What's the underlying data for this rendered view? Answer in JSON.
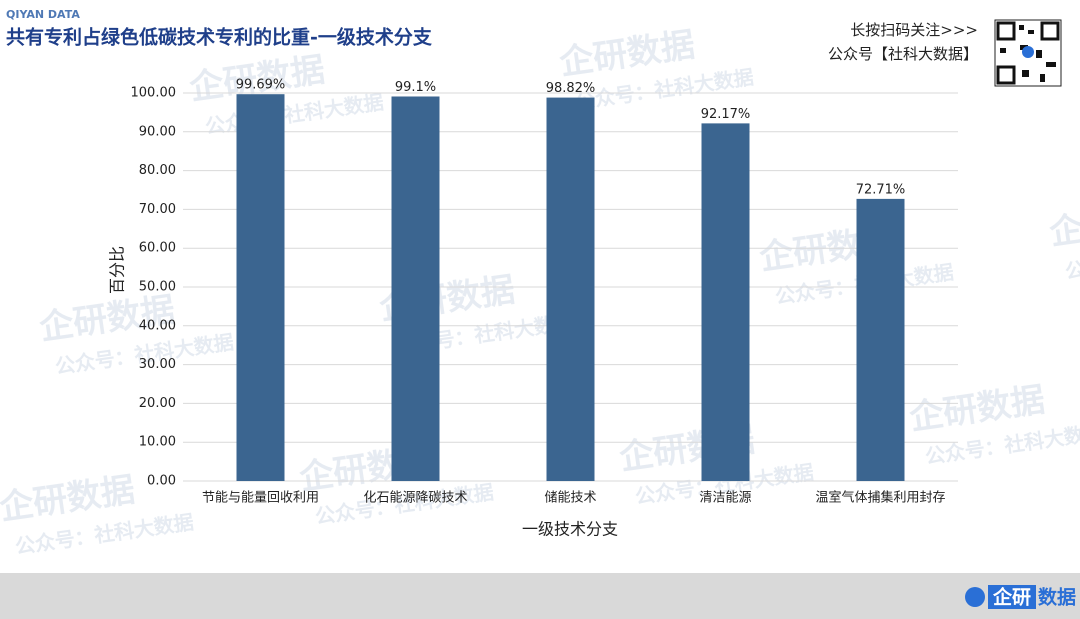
{
  "page": {
    "brand": "QIYAN DATA",
    "qr_caption": "长按扫码关注>>>",
    "account": "公众号【社科大数据】",
    "footer_logo_a": "企研",
    "footer_logo_b": "数据",
    "watermark_brand": "企研数据",
    "watermark_account": "公众号：社科大数据"
  },
  "chart_data": {
    "type": "bar",
    "title": "共有专利占绿色低碳技术专利的比重-一级技术分支",
    "x_label": "一级技术分支",
    "y_label": "百分比",
    "categories": [
      "节能与能量回收利用",
      "化石能源降碳技术",
      "储能技术",
      "清洁能源",
      "温室气体捕集利用封存"
    ],
    "values": [
      99.69,
      99.1,
      98.82,
      92.17,
      72.71
    ],
    "value_labels": [
      "99.69%",
      "99.1%",
      "98.82%",
      "92.17%",
      "72.71%"
    ],
    "color": "#3b6590",
    "ylim": [
      0,
      100
    ],
    "yticks": [
      {
        "value": 0,
        "label": "0.00"
      },
      {
        "value": 10,
        "label": "10.00"
      },
      {
        "value": 20,
        "label": "20.00"
      },
      {
        "value": 30,
        "label": "30.00"
      },
      {
        "value": 40,
        "label": "40.00"
      },
      {
        "value": 50,
        "label": "50.00"
      },
      {
        "value": 60,
        "label": "60.00"
      },
      {
        "value": 70,
        "label": "70.00"
      },
      {
        "value": 80,
        "label": "80.00"
      },
      {
        "value": 90,
        "label": "90.00"
      },
      {
        "value": 100,
        "label": "100.00"
      }
    ],
    "grid": true
  }
}
